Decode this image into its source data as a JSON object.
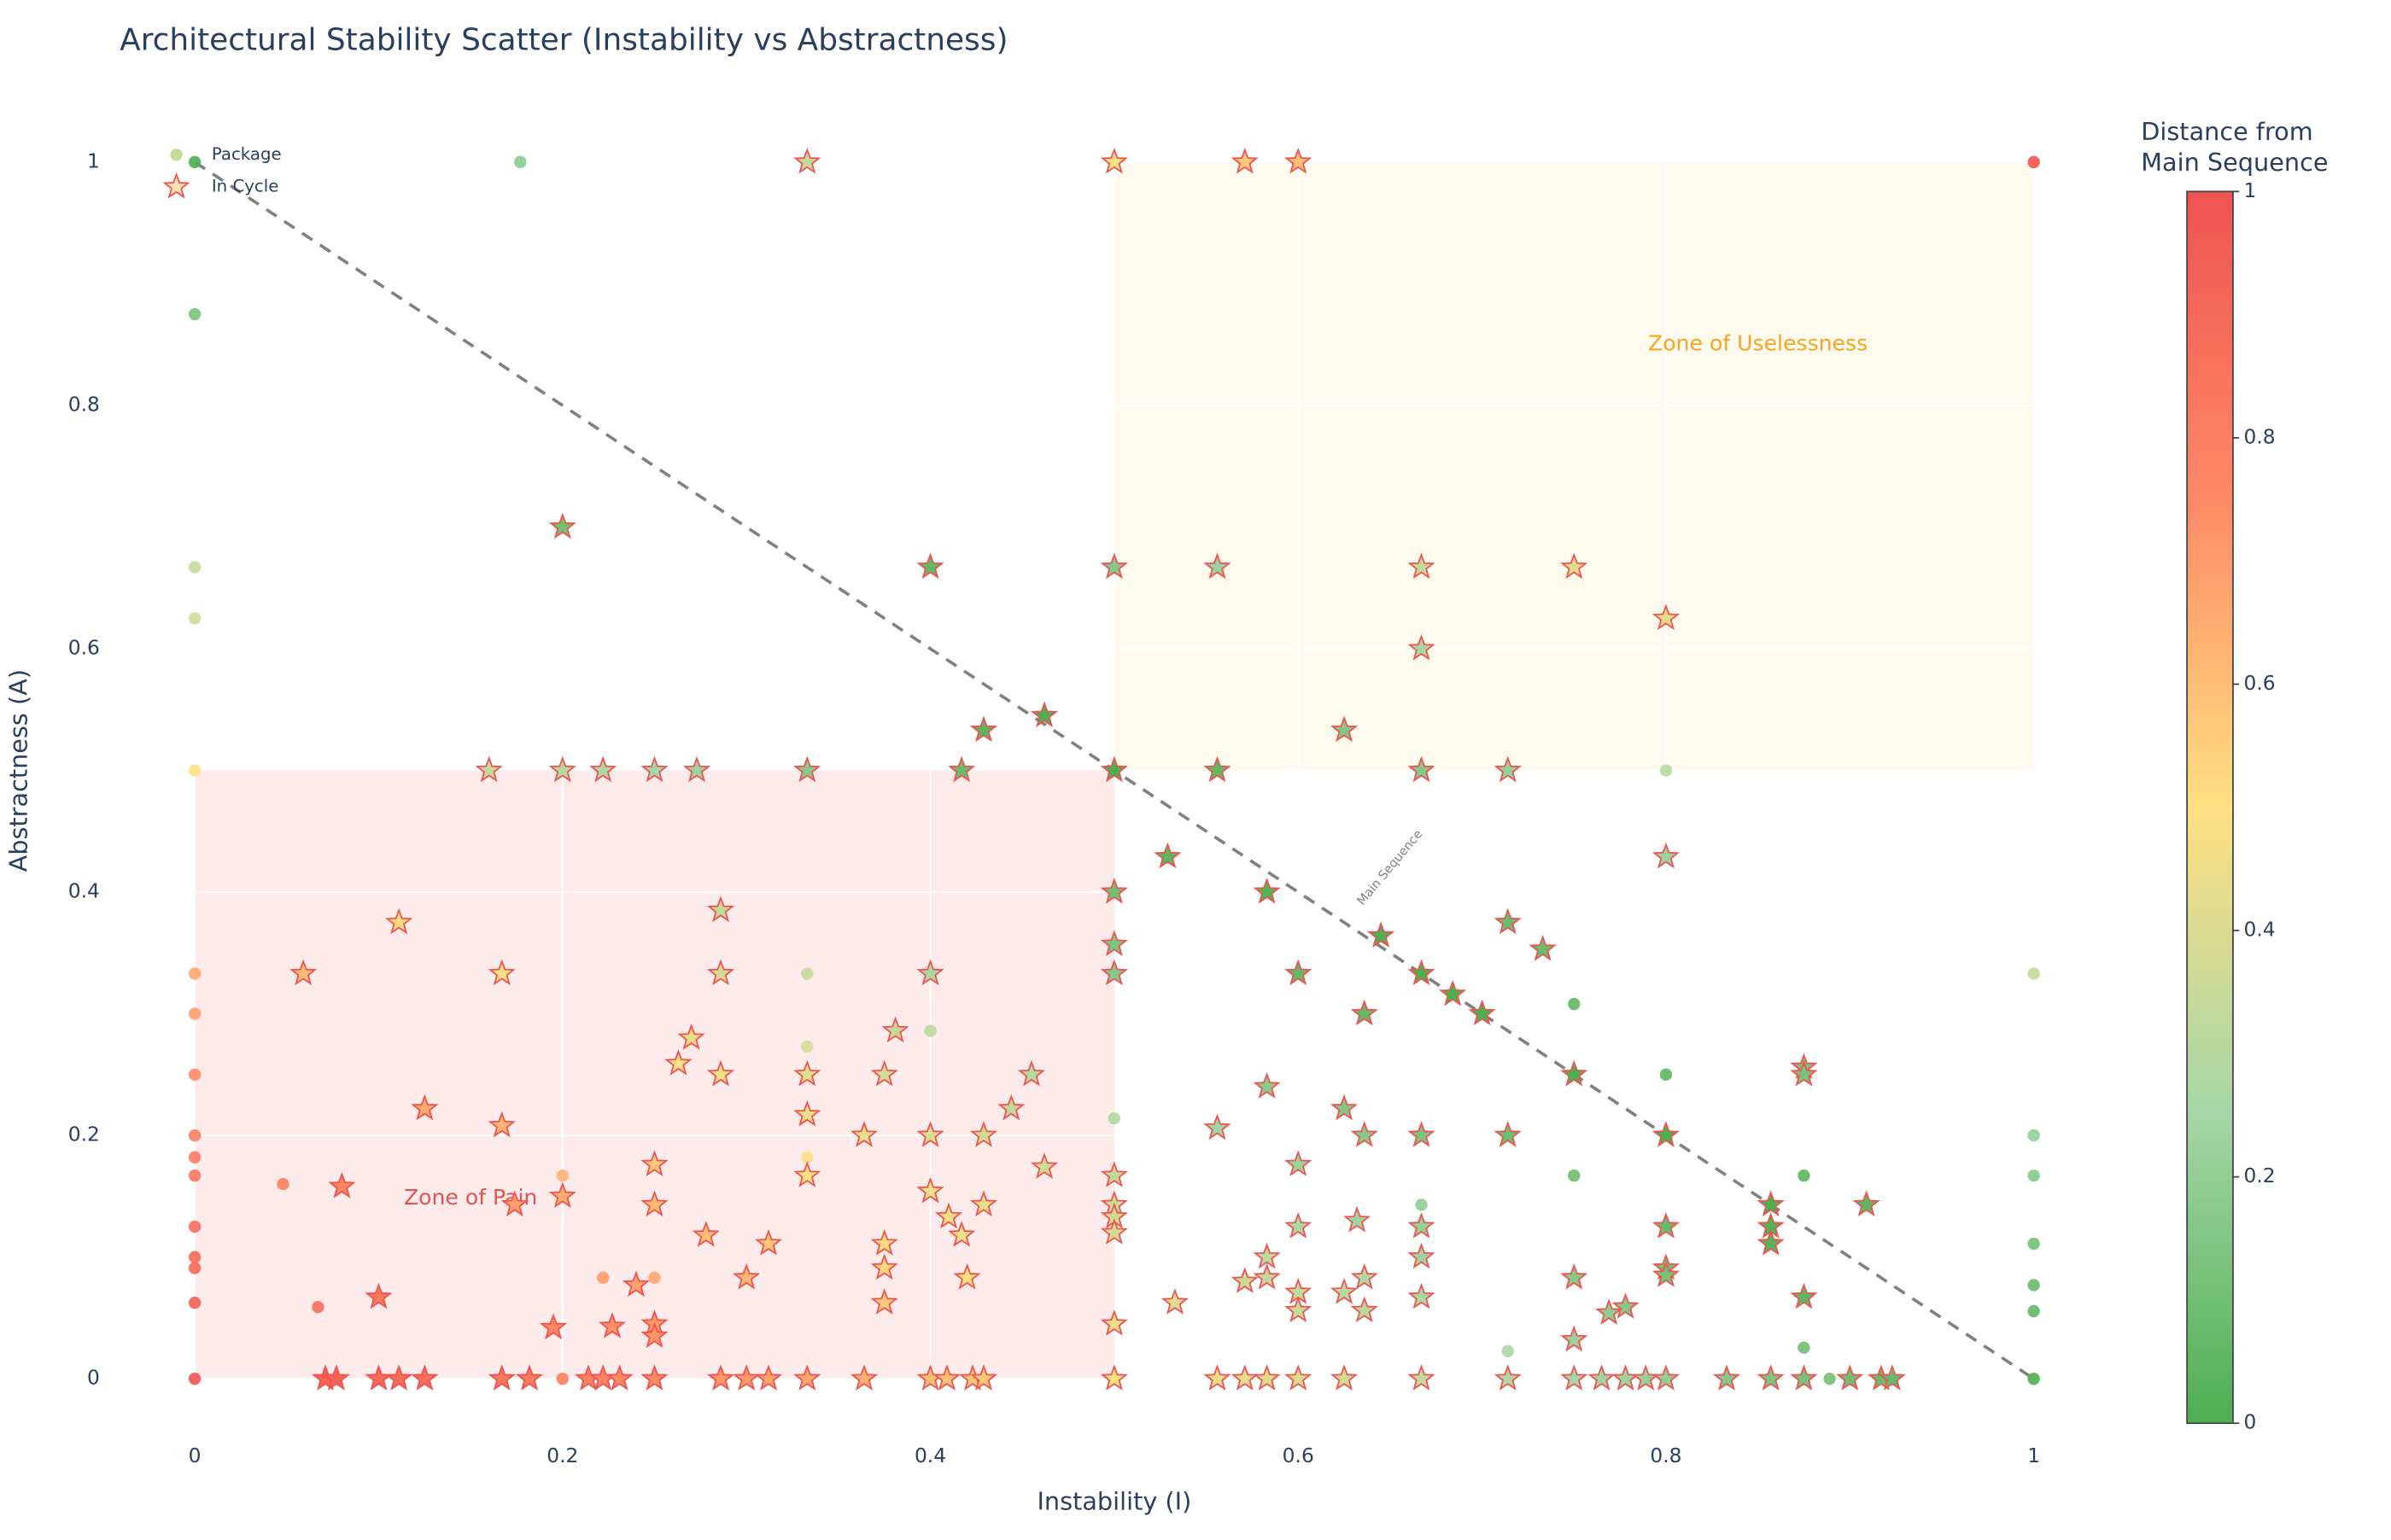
{
  "chart_data": {
    "type": "scatter",
    "title": "Architectural Stability Scatter (Instability vs Abstractness)",
    "x_label": "Instability (I)",
    "y_label": "Abstractness (A)",
    "xlim": [
      -0.02,
      1.02
    ],
    "ylim": [
      -0.05,
      1.035
    ],
    "xticks": [
      0,
      0.2,
      0.4,
      0.6,
      0.8,
      1
    ],
    "yticks": [
      0,
      0.2,
      0.4,
      0.6,
      0.8,
      1
    ],
    "grid": true,
    "legend": "top-left",
    "zones": [
      {
        "label": "Zone of Pain",
        "x": [
          0,
          0.5
        ],
        "y": [
          0,
          0.5
        ],
        "color": "#fdeaea",
        "label_color": "#e05555"
      },
      {
        "label": "Zone of Uselessness",
        "x": [
          0.5,
          1
        ],
        "y": [
          0.5,
          1
        ],
        "color": "#fefaee",
        "label_color": "#f5a623"
      }
    ],
    "main_sequence": {
      "label": "Main Sequence",
      "x": [
        0,
        1
      ],
      "y": [
        1,
        0
      ],
      "color": "#808080"
    },
    "colorbar": {
      "title_lines": [
        "Distance from",
        "Main Sequence"
      ],
      "lim": [
        0,
        1
      ],
      "ticks": [
        0,
        0.2,
        0.4,
        0.6,
        0.8,
        1
      ],
      "colorscale": [
        "#4CAF50",
        "#A5D6A7",
        "#FFE082",
        "#FF8A65",
        "#EF5350"
      ]
    },
    "series": [
      {
        "name": "Package",
        "marker": "circle",
        "color": "#c5dd9a",
        "x": [
          0,
          0.177,
          0,
          0,
          0,
          0,
          0,
          0,
          0,
          0,
          0,
          0,
          0,
          0,
          0,
          0,
          0,
          1,
          0.8,
          1,
          0.75,
          0.8,
          0.333,
          0.333,
          0.4,
          0.5,
          1,
          1,
          0.75,
          0.875,
          0.2,
          0.333,
          0.048,
          0.667,
          1,
          0.222,
          0.25,
          1,
          0.067,
          1,
          0.875,
          0.714,
          0.2,
          0.889,
          1
        ],
        "y": [
          1,
          1,
          0.875,
          0.667,
          0.625,
          0.5,
          0.333,
          0.3,
          0.25,
          0.2,
          0.182,
          0.167,
          0.125,
          0.1,
          0.091,
          0.0625,
          0,
          1,
          0.5,
          0.333,
          0.308,
          0.25,
          0.333,
          0.273,
          0.286,
          0.214,
          0.2,
          0.167,
          0.167,
          0.167,
          0.167,
          0.182,
          0.16,
          0.143,
          0.111,
          0.083,
          0.083,
          0.077,
          0.059,
          0.0556,
          0.0256,
          0.0227,
          0,
          0,
          0
        ]
      },
      {
        "name": "In Cycle",
        "marker": "star",
        "color": "#EF5350",
        "x": [
          0.333,
          0.5,
          0.571,
          0.6,
          0.2,
          0.4,
          0.5,
          0.556,
          0.667,
          0.75,
          0.8,
          0.667,
          0.429,
          0.462,
          0.625,
          0.16,
          0.2,
          0.222,
          0.25,
          0.273,
          0.333,
          0.417,
          0.5,
          0.556,
          0.667,
          0.714,
          0.8,
          0.529,
          0.5,
          0.583,
          0.111,
          0.714,
          0.286,
          0.5,
          0.645,
          0.733,
          0.059,
          0.167,
          0.286,
          0.4,
          0.5,
          0.6,
          0.667,
          0.684,
          0.7,
          0.636,
          0.381,
          0.27,
          0.263,
          0.875,
          0.286,
          0.333,
          0.375,
          0.455,
          0.75,
          0.875,
          0.583,
          0.125,
          0.333,
          0.444,
          0.625,
          0.167,
          0.556,
          0.364,
          0.4,
          0.429,
          0.636,
          0.667,
          0.714,
          0.8,
          0.25,
          0.462,
          0.6,
          0.333,
          0.5,
          0.08,
          0.2,
          0.4,
          0.174,
          0.25,
          0.429,
          0.5,
          0.857,
          0.909,
          0.41,
          0.5,
          0.632,
          0.6,
          0.667,
          0.8,
          0.857,
          0.5,
          0.417,
          0.278,
          0.375,
          0.312,
          0.857,
          0.583,
          0.667,
          0.375,
          0.8,
          0.8,
          0.3,
          0.42,
          0.583,
          0.571,
          0.636,
          0.75,
          0.24,
          0.625,
          0.6,
          0.1,
          0.667,
          0.875,
          0.375,
          0.533,
          0.778,
          0.6,
          0.636,
          0.769,
          0.25,
          0.5,
          0.227,
          0.195,
          0.25,
          0.75,
          0.071,
          0.077,
          0.1,
          0.111,
          0.125,
          0.167,
          0.182,
          0.214,
          0.222,
          0.231,
          0.25,
          0.286,
          0.3,
          0.312,
          0.333,
          0.364,
          0.4,
          0.409,
          0.423,
          0.429,
          0.5,
          0.556,
          0.571,
          0.583,
          0.6,
          0.625,
          0.667,
          0.714,
          0.75,
          0.765,
          0.778,
          0.789,
          0.8,
          0.833,
          0.857,
          0.875,
          0.9,
          0.917,
          0.923
        ],
        "y": [
          1,
          1,
          1,
          1,
          0.7,
          0.667,
          0.667,
          0.667,
          0.667,
          0.667,
          0.625,
          0.6,
          0.533,
          0.545,
          0.533,
          0.5,
          0.5,
          0.5,
          0.5,
          0.5,
          0.5,
          0.5,
          0.5,
          0.5,
          0.5,
          0.5,
          0.429,
          0.429,
          0.4,
          0.4,
          0.375,
          0.375,
          0.385,
          0.357,
          0.364,
          0.353,
          0.333,
          0.333,
          0.333,
          0.333,
          0.333,
          0.333,
          0.333,
          0.316,
          0.3,
          0.3,
          0.286,
          0.28,
          0.259,
          0.256,
          0.25,
          0.25,
          0.25,
          0.25,
          0.25,
          0.25,
          0.24,
          0.222,
          0.217,
          0.222,
          0.222,
          0.208,
          0.206,
          0.2,
          0.2,
          0.2,
          0.2,
          0.2,
          0.2,
          0.2,
          0.176,
          0.174,
          0.176,
          0.167,
          0.167,
          0.158,
          0.15,
          0.154,
          0.143,
          0.143,
          0.143,
          0.143,
          0.143,
          0.143,
          0.133,
          0.133,
          0.13,
          0.125,
          0.125,
          0.125,
          0.125,
          0.12,
          0.118,
          0.118,
          0.111,
          0.111,
          0.111,
          0.1,
          0.1,
          0.091,
          0.091,
          0.085,
          0.083,
          0.083,
          0.083,
          0.08,
          0.083,
          0.083,
          0.077,
          0.071,
          0.071,
          0.067,
          0.067,
          0.067,
          0.0625,
          0.0625,
          0.059,
          0.056,
          0.056,
          0.054,
          0.045,
          0.045,
          0.043,
          0.042,
          0.035,
          0.032,
          0,
          0,
          0,
          0,
          0,
          0,
          0,
          0,
          0,
          0,
          0,
          0,
          0,
          0,
          0,
          0,
          0,
          0,
          0,
          0,
          0,
          0,
          0,
          0,
          0,
          0,
          0,
          0,
          0,
          0,
          0,
          0,
          0,
          0,
          0,
          0,
          0,
          0,
          0
        ]
      }
    ]
  }
}
